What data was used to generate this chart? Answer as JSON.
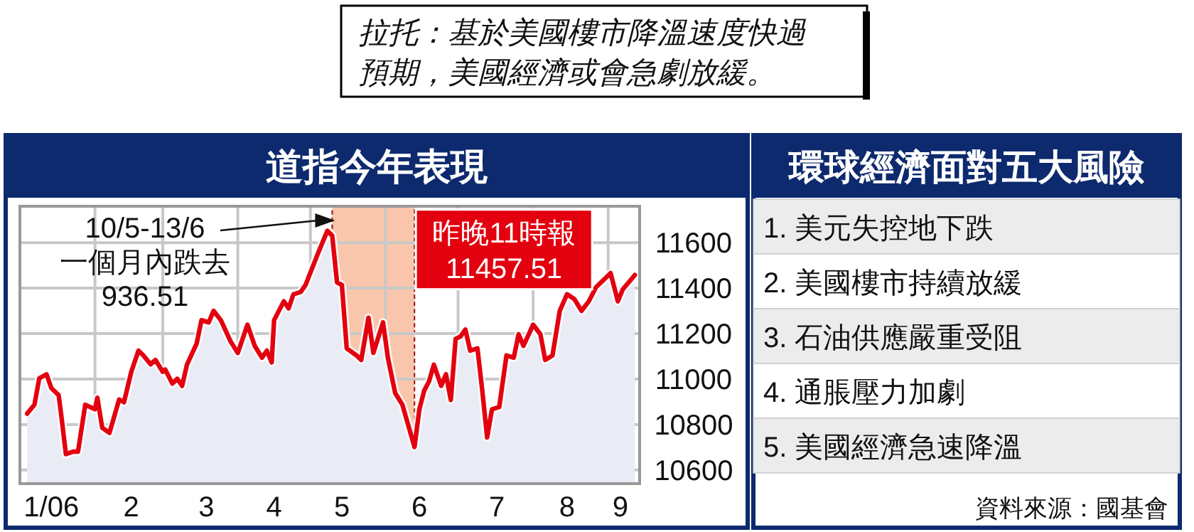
{
  "chart_data": [
    {
      "type": "area",
      "title": "道指今年表現",
      "annotations": [
        "拉托：基於美國樓市降溫速度快過預期，美國經濟或會急劇放緩。",
        "10/5-13/6\n一個月內跌去\n936.51",
        {
          "text": "昨晚11時報\n11457.51",
          "x": "2006-09-12",
          "y": 11457.51
        }
      ],
      "x": [
        "2006-01-04",
        "2006-01-07",
        "2006-01-09",
        "2006-01-12",
        "2006-01-14",
        "2006-01-17",
        "2006-01-18",
        "2006-01-20",
        "2006-01-23",
        "2006-01-25",
        "2006-01-28",
        "2006-02-01",
        "2006-02-02",
        "2006-02-04",
        "2006-02-07",
        "2006-02-11",
        "2006-02-13",
        "2006-02-16",
        "2006-02-19",
        "2006-02-21",
        "2006-02-24",
        "2006-02-26",
        "2006-03-01",
        "2006-03-02",
        "2006-03-05",
        "2006-03-07",
        "2006-03-09",
        "2006-03-11",
        "2006-03-15",
        "2006-03-17",
        "2006-03-20",
        "2006-03-22",
        "2006-03-25",
        "2006-03-29",
        "2006-04-01",
        "2006-04-05",
        "2006-04-08",
        "2006-04-11",
        "2006-04-13",
        "2006-04-15",
        "2006-04-16",
        "2006-04-20",
        "2006-04-22",
        "2006-04-24",
        "2006-04-27",
        "2006-04-29",
        "2006-05-04",
        "2006-05-08",
        "2006-05-10",
        "2006-05-12",
        "2006-05-14",
        "2006-05-16",
        "2006-05-20",
        "2006-05-22",
        "2006-05-25",
        "2006-05-27",
        "2006-05-31",
        "2006-06-02",
        "2006-06-05",
        "2006-06-08",
        "2006-06-13",
        "2006-06-15",
        "2006-06-17",
        "2006-06-19",
        "2006-06-21",
        "2006-06-24",
        "2006-06-26",
        "2006-06-28",
        "2006-06-30",
        "2006-07-02",
        "2006-07-04",
        "2006-07-06",
        "2006-07-09",
        "2006-07-11",
        "2006-07-13",
        "2006-07-15",
        "2006-07-18",
        "2006-07-21",
        "2006-07-24",
        "2006-07-26",
        "2006-07-28",
        "2006-08-01",
        "2006-08-04",
        "2006-08-06",
        "2006-08-09",
        "2006-08-12",
        "2006-08-15",
        "2006-08-18",
        "2006-08-21",
        "2006-08-24",
        "2006-08-27",
        "2006-09-02",
        "2006-09-05",
        "2006-09-07",
        "2006-09-12"
      ],
      "series": [
        {
          "color": "#e3000f",
          "values": [
            10848,
            10887,
            11003,
            11021,
            10960,
            10929,
            10848,
            10670,
            10681,
            10681,
            10887,
            10867,
            10918,
            10786,
            10763,
            10910,
            10898,
            11032,
            11125,
            11104,
            11065,
            11084,
            11032,
            11042,
            10980,
            11001,
            10970,
            11063,
            11156,
            11259,
            11249,
            11300,
            11259,
            11166,
            11115,
            11239,
            11146,
            11094,
            11125,
            11073,
            11259,
            11342,
            11311,
            11373,
            11383,
            11414,
            11549,
            11652,
            11631,
            11425,
            11414,
            11135,
            11104,
            11084,
            11270,
            11115,
            11249,
            11094,
            10939,
            10887,
            10701,
            10867,
            10949,
            10990,
            11063,
            10970,
            11021,
            10908,
            11177,
            11187,
            11218,
            11125,
            11135,
            10949,
            10743,
            10867,
            10877,
            11104,
            11094,
            11197,
            11146,
            11239,
            11197,
            11084,
            11104,
            11300,
            11373,
            11352,
            11300,
            11342,
            11404,
            11466,
            11342,
            11394,
            11457.51
          ]
        }
      ],
      "xlim": [
        "2006-01-01",
        "2006-09-14"
      ],
      "xticks": [
        {
          "value": "2006-01-14",
          "label": "1/06"
        },
        {
          "value": "2006-02-01",
          "label": null
        },
        {
          "value": "2006-02-16",
          "label": "2"
        },
        {
          "value": "2006-03-01",
          "label": null
        },
        {
          "value": "2006-03-19",
          "label": "3"
        },
        {
          "value": "2006-04-01",
          "label": null
        },
        {
          "value": "2006-04-16",
          "label": "4"
        },
        {
          "value": "2006-05-01",
          "label": null
        },
        {
          "value": "2006-05-14",
          "label": "5"
        },
        {
          "value": "2006-06-01",
          "label": null
        },
        {
          "value": "2006-06-15",
          "label": "6"
        },
        {
          "value": "2006-07-01",
          "label": null
        },
        {
          "value": "2006-07-17",
          "label": "7"
        },
        {
          "value": "2006-08-01",
          "label": null
        },
        {
          "value": "2006-08-15",
          "label": "8"
        },
        {
          "value": "2006-09-01",
          "label": null
        },
        {
          "value": "2006-09-06",
          "label": "9"
        }
      ],
      "ylim": [
        10540,
        11760
      ],
      "yticks": [
        10600,
        10800,
        11000,
        11200,
        11400,
        11600
      ],
      "grid": true,
      "bands": [
        {
          "axis": "x",
          "from": "2006-05-10",
          "to": "2006-06-13",
          "color": "#f9c6ac"
        }
      ]
    },
    {
      "type": "other",
      "title": "環球經濟面對五大風險",
      "categories": [
        "1. 美元失控地下跌",
        "2. 美國樓市持續放緩",
        "3. 石油供應嚴重受阻",
        "4. 通脹壓力加劇",
        "5. 美國經濟急速降溫"
      ],
      "annotations": [
        "資料來源：國基會"
      ]
    }
  ]
}
